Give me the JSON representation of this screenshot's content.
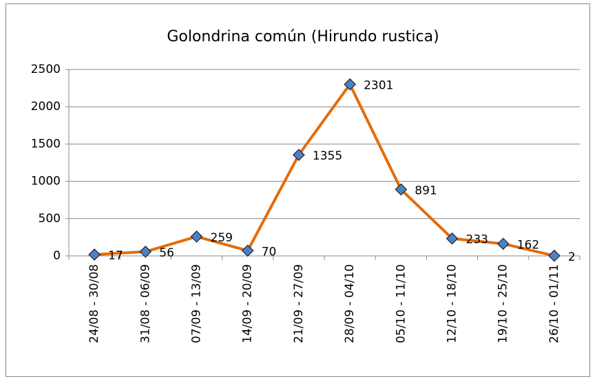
{
  "chart_data": {
    "type": "line",
    "title": "Golondrina común (Hirundo rustica)",
    "categories": [
      "24/08 - 30/08",
      "31/08 - 06/09",
      "07/09 - 13/09",
      "14/09 - 20/09",
      "21/09 - 27/09",
      "28/09 - 04/10",
      "05/10 - 11/10",
      "12/10 - 18/10",
      "19/10 - 25/10",
      "26/10 - 01/11"
    ],
    "series": [
      {
        "name": "Golondrina común",
        "color": "#e46c0a",
        "marker_color": "#4f81bd",
        "values": [
          17,
          56,
          259,
          70,
          1355,
          2301,
          891,
          233,
          162,
          2
        ]
      }
    ],
    "ylim": [
      0,
      2500
    ],
    "yticks": [
      0,
      500,
      1000,
      1500,
      2000,
      2500
    ],
    "grid": true,
    "data_labels": true
  }
}
